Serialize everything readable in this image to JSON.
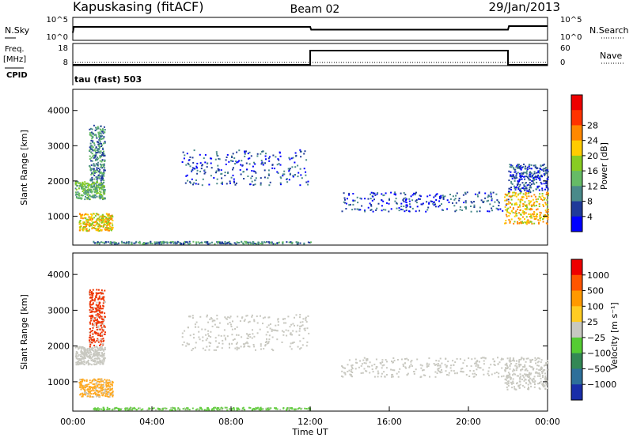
{
  "header": {
    "site": "Kapuskasing (fitACF)",
    "beam": "Beam 02",
    "date": "29/Jan/2013"
  },
  "param_panels": {
    "nsky_label": "N.Sky",
    "nsky_ticks": [
      "10^5",
      "10^0"
    ],
    "nsearch_label": "N.Search",
    "nsearch_ticks": [
      "10^5",
      "10^0"
    ],
    "freq_label": "Freq.",
    "freq_unit": "[MHz]",
    "freq_ticks": [
      "18",
      "8"
    ],
    "nave_label": "Nave",
    "nave_ticks": [
      "60",
      "0"
    ],
    "cpid_label": "CPID",
    "cpid_value": "tau (fast) 503",
    "freq_trace": {
      "hours": [
        0,
        12,
        12,
        22,
        22,
        24
      ],
      "values": [
        8,
        8,
        18,
        18,
        8,
        8
      ]
    },
    "nsky_trace": {
      "hours": [
        0,
        0.05,
        12,
        12.05,
        22,
        22.05,
        24
      ],
      "values": [
        1.5,
        3,
        3,
        2.3,
        2.3,
        3.2,
        3.2
      ]
    }
  },
  "chart_data": [
    {
      "type": "heatmap",
      "name": "power",
      "ylabel": "Slant Range [km]",
      "xlim": [
        0,
        24
      ],
      "ylim": [
        180,
        4600
      ],
      "yticks": [
        "1000",
        "2000",
        "3000",
        "4000"
      ],
      "colorbar_label": "Power [dB]",
      "colorbar_ticks": [
        "4",
        "8",
        "12",
        "16",
        "20",
        "24",
        "28"
      ],
      "colorbar_colors": [
        "#0000ff",
        "#1f3a9a",
        "#4a8a8a",
        "#66bb66",
        "#88cc22",
        "#ffcc00",
        "#ff8800",
        "#ff3300",
        "#ee0000"
      ],
      "scatter_regions": [
        {
          "h": [
            0.1,
            1.6
          ],
          "r": [
            1500,
            2000
          ],
          "level": 3
        },
        {
          "h": [
            0.3,
            2.0
          ],
          "r": [
            600,
            1100
          ],
          "level": 5
        },
        {
          "h": [
            0.8,
            1.6
          ],
          "r": [
            2000,
            3600
          ],
          "level": 2
        },
        {
          "h": [
            5.5,
            11.9
          ],
          "r": [
            1900,
            2900
          ],
          "level": 1
        },
        {
          "h": [
            13.5,
            22.0
          ],
          "r": [
            1150,
            1700
          ],
          "level": 1
        },
        {
          "h": [
            21.8,
            24.0
          ],
          "r": [
            800,
            1700
          ],
          "level": 5
        },
        {
          "h": [
            22.0,
            24.0
          ],
          "r": [
            1700,
            2500
          ],
          "level": 1
        },
        {
          "h": [
            1.0,
            12.0
          ],
          "r": [
            230,
            300
          ],
          "level": 2
        }
      ]
    },
    {
      "type": "heatmap",
      "name": "velocity",
      "ylabel": "Slant Range [km]",
      "xlabel": "Time UT",
      "xlim": [
        0,
        24
      ],
      "ylim": [
        180,
        4600
      ],
      "yticks": [
        "1000",
        "2000",
        "3000",
        "4000"
      ],
      "xticks": [
        "00:00",
        "04:00",
        "08:00",
        "12:00",
        "16:00",
        "20:00",
        "00:00"
      ],
      "colorbar_label": "Velocity [m s⁻¹]",
      "colorbar_ticks": [
        "1000",
        "500",
        "100",
        "25",
        "−25",
        "−100",
        "−500",
        "−1000"
      ],
      "colorbar_colors": [
        "#1a2ea8",
        "#2e6f9a",
        "#338855",
        "#55cc33",
        "#c8c8c0",
        "#ffcc22",
        "#ff9900",
        "#ff5500",
        "#ee0000"
      ],
      "scatter_regions": [
        {
          "h": [
            0.1,
            1.6
          ],
          "r": [
            1500,
            2000
          ],
          "vel": "gray"
        },
        {
          "h": [
            0.3,
            2.0
          ],
          "r": [
            600,
            1100
          ],
          "vel": "orange"
        },
        {
          "h": [
            0.8,
            1.6
          ],
          "r": [
            2000,
            3600
          ],
          "vel": "red"
        },
        {
          "h": [
            5.5,
            11.9
          ],
          "r": [
            1900,
            2900
          ],
          "vel": "gray"
        },
        {
          "h": [
            13.5,
            22.0
          ],
          "r": [
            1150,
            1700
          ],
          "vel": "gray"
        },
        {
          "h": [
            21.8,
            24.0
          ],
          "r": [
            800,
            1700
          ],
          "vel": "gray"
        },
        {
          "h": [
            1.0,
            12.0
          ],
          "r": [
            230,
            300
          ],
          "vel": "green"
        }
      ]
    }
  ]
}
